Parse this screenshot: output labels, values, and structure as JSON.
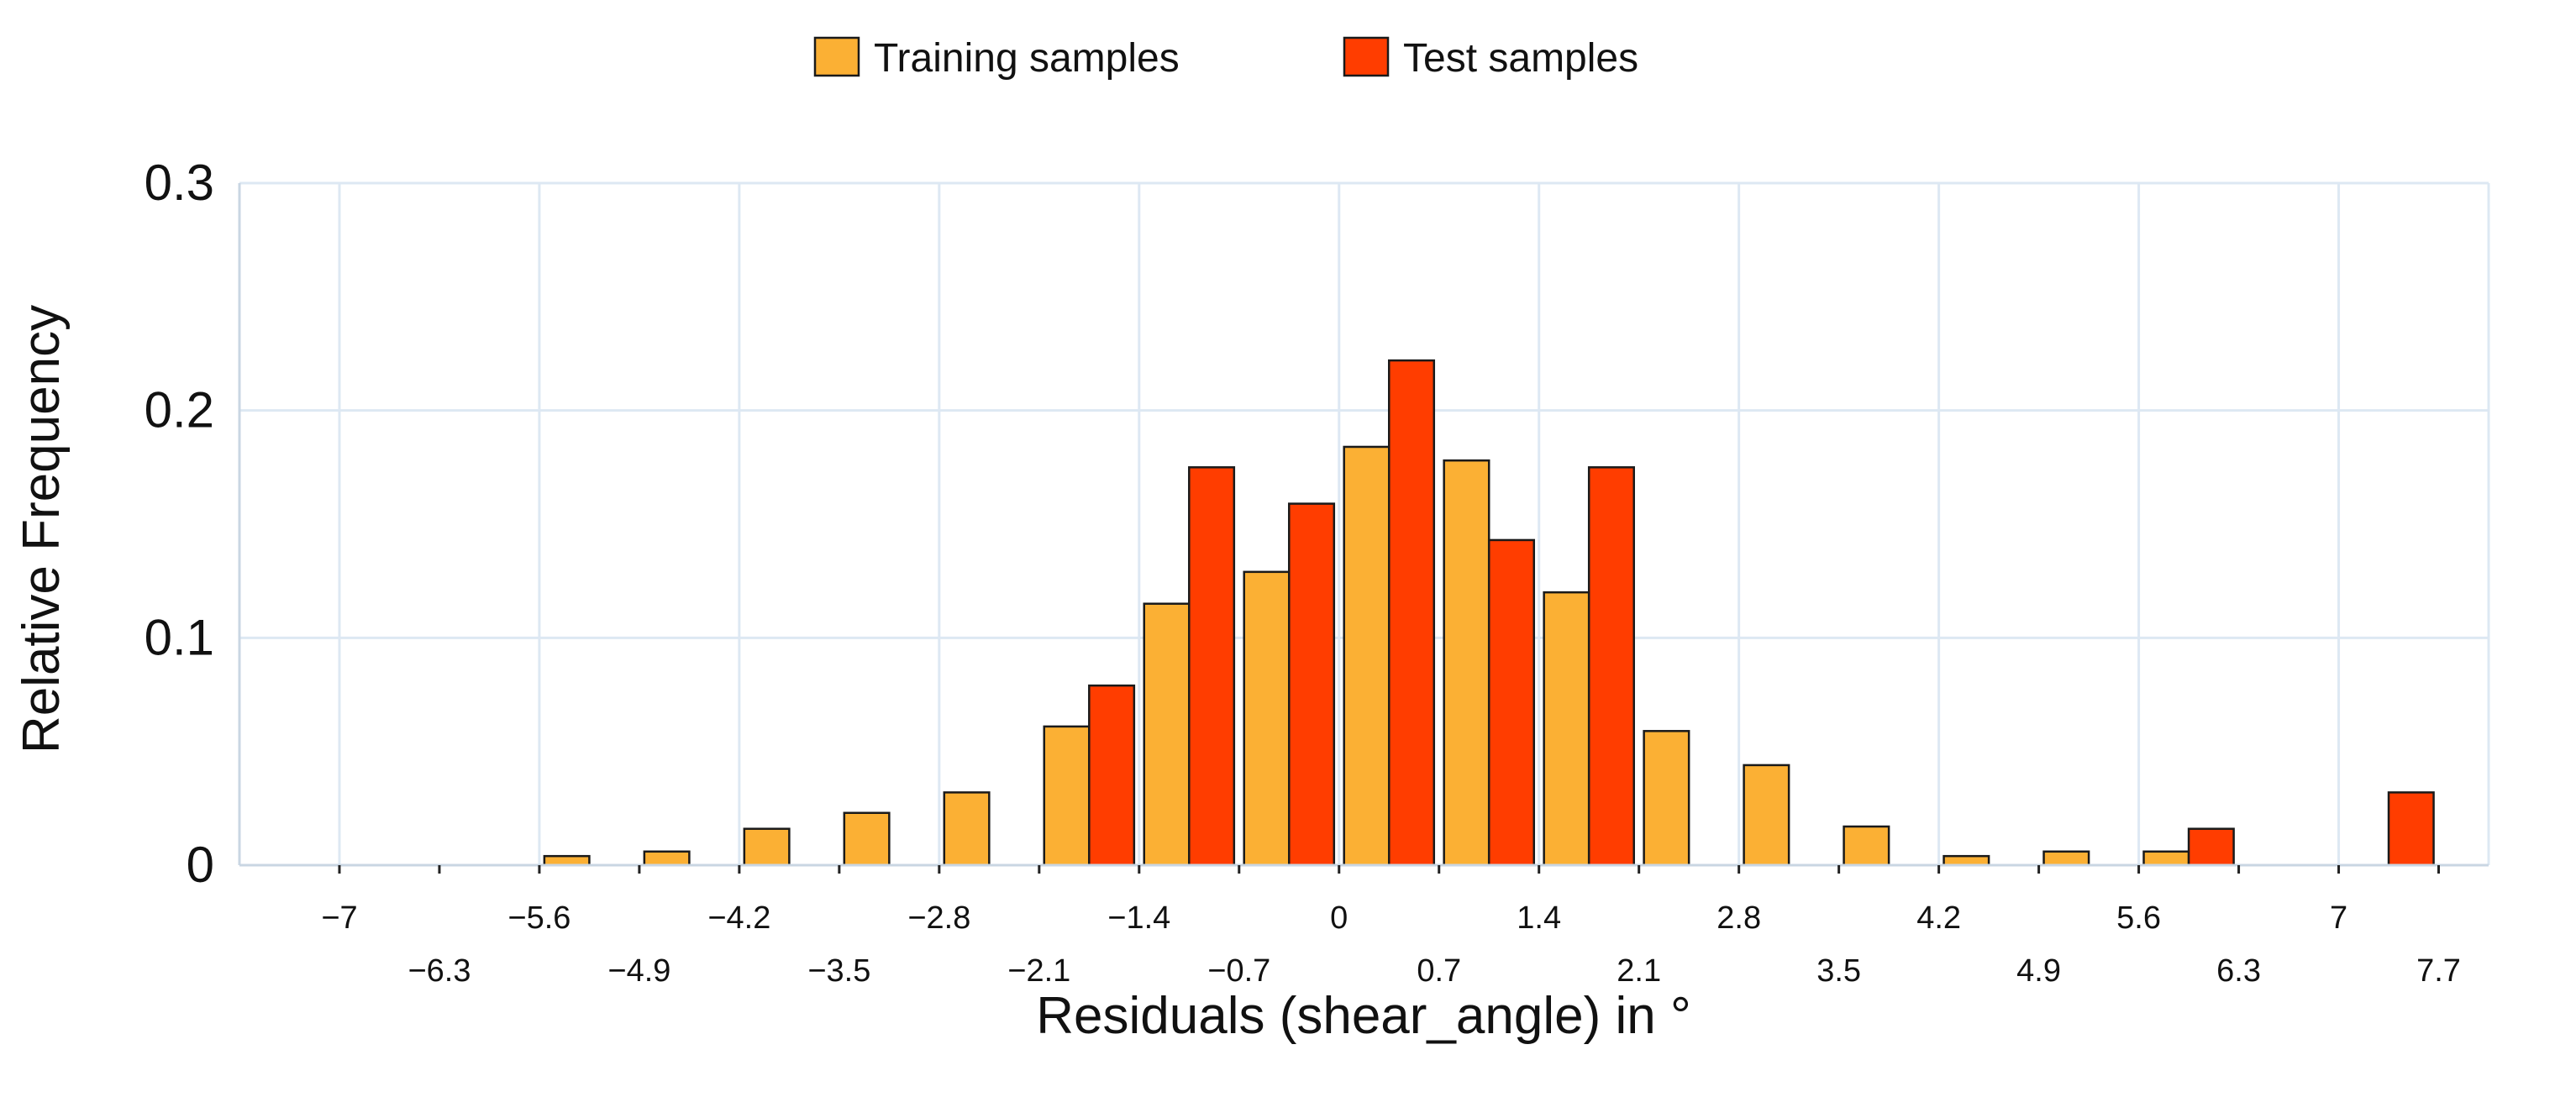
{
  "chart_data": {
    "type": "bar",
    "title": "",
    "xlabel": "Residuals (shear_angle) in °",
    "ylabel": "Relative Frequency",
    "xlim": [
      -7.7,
      8.05
    ],
    "ylim": [
      0,
      0.3
    ],
    "grid": true,
    "legend_position": "top-center",
    "bin_width": 0.7,
    "x_ticks": [
      {
        "value": -7,
        "label": "−7",
        "row": 1
      },
      {
        "value": -6.3,
        "label": "−6.3",
        "row": 2
      },
      {
        "value": -5.6,
        "label": "−5.6",
        "row": 1
      },
      {
        "value": -4.9,
        "label": "−4.9",
        "row": 2
      },
      {
        "value": -4.2,
        "label": "−4.2",
        "row": 1
      },
      {
        "value": -3.5,
        "label": "−3.5",
        "row": 2
      },
      {
        "value": -2.8,
        "label": "−2.8",
        "row": 1
      },
      {
        "value": -2.1,
        "label": "−2.1",
        "row": 2
      },
      {
        "value": -1.4,
        "label": "−1.4",
        "row": 1
      },
      {
        "value": -0.7,
        "label": "−0.7",
        "row": 2
      },
      {
        "value": 0,
        "label": "0",
        "row": 1
      },
      {
        "value": 0.7,
        "label": "0.7",
        "row": 2
      },
      {
        "value": 1.4,
        "label": "1.4",
        "row": 1
      },
      {
        "value": 2.1,
        "label": "2.1",
        "row": 2
      },
      {
        "value": 2.8,
        "label": "2.8",
        "row": 1
      },
      {
        "value": 3.5,
        "label": "3.5",
        "row": 2
      },
      {
        "value": 4.2,
        "label": "4.2",
        "row": 1
      },
      {
        "value": 4.9,
        "label": "4.9",
        "row": 2
      },
      {
        "value": 5.6,
        "label": "5.6",
        "row": 1
      },
      {
        "value": 6.3,
        "label": "6.3",
        "row": 2
      },
      {
        "value": 7,
        "label": "7",
        "row": 1
      },
      {
        "value": 7.7,
        "label": "7.7",
        "row": 2
      }
    ],
    "y_ticks": [
      {
        "value": 0,
        "label": "0"
      },
      {
        "value": 0.1,
        "label": "0.1"
      },
      {
        "value": 0.2,
        "label": "0.2"
      },
      {
        "value": 0.3,
        "label": "0.3"
      }
    ],
    "series": [
      {
        "name": "Training samples",
        "color": "#FBB034",
        "bins": [
          {
            "start": -5.6,
            "value": 0.004
          },
          {
            "start": -4.9,
            "value": 0.006
          },
          {
            "start": -4.2,
            "value": 0.016
          },
          {
            "start": -3.5,
            "value": 0.023
          },
          {
            "start": -2.8,
            "value": 0.032
          },
          {
            "start": -2.1,
            "value": 0.061
          },
          {
            "start": -1.4,
            "value": 0.115
          },
          {
            "start": -0.7,
            "value": 0.129
          },
          {
            "start": 0.0,
            "value": 0.184
          },
          {
            "start": 0.7,
            "value": 0.178
          },
          {
            "start": 1.4,
            "value": 0.12
          },
          {
            "start": 2.1,
            "value": 0.059
          },
          {
            "start": 2.8,
            "value": 0.044
          },
          {
            "start": 3.5,
            "value": 0.017
          },
          {
            "start": 4.2,
            "value": 0.004
          },
          {
            "start": 4.9,
            "value": 0.006
          },
          {
            "start": 5.6,
            "value": 0.006
          }
        ]
      },
      {
        "name": "Test samples",
        "color": "#FF3D00",
        "bins": [
          {
            "start": -2.1,
            "value": 0.079
          },
          {
            "start": -1.4,
            "value": 0.175
          },
          {
            "start": -0.7,
            "value": 0.159
          },
          {
            "start": 0.0,
            "value": 0.222
          },
          {
            "start": 0.7,
            "value": 0.143
          },
          {
            "start": 1.4,
            "value": 0.175
          },
          {
            "start": 5.6,
            "value": 0.016
          },
          {
            "start": 7.0,
            "value": 0.032
          }
        ]
      }
    ]
  }
}
